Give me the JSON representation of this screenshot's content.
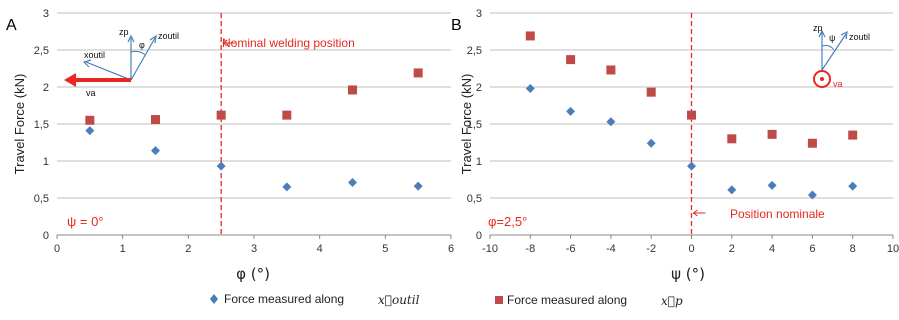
{
  "chart_data": [
    {
      "panel": "A",
      "type": "scatter",
      "xlabel": "φ (°)",
      "ylabel": "Travel Force (kN)",
      "xlim": [
        0,
        6
      ],
      "ylim": [
        0,
        3
      ],
      "x_ticks": [
        "0",
        "1",
        "2",
        "3",
        "4",
        "5",
        "6"
      ],
      "y_ticks": [
        "0",
        "0,5",
        "1",
        "1,5",
        "2",
        "2,5",
        "3"
      ],
      "grid": "horizontal",
      "annotations": {
        "condition": "ψ = 0°",
        "reference_line_label": "Nominal welding position",
        "reference_x": 2.5,
        "schematic": {
          "z_label": "zp",
          "z_outil_label": "zoutil",
          "x_label": "xoutil",
          "v_label": "va",
          "angle_label": "φ"
        }
      },
      "series": [
        {
          "name": "Force measured along x⃗outil",
          "color": "#4a7ebb",
          "marker": "diamond",
          "x": [
            0.5,
            1.5,
            2.5,
            3.5,
            4.5,
            5.5
          ],
          "y": [
            1.41,
            1.14,
            0.93,
            0.65,
            0.71,
            0.66
          ]
        },
        {
          "name": "Force measured along x⃗p",
          "color": "#be4b48",
          "marker": "square",
          "x": [
            0.5,
            1.5,
            2.5,
            3.5,
            4.5,
            5.5
          ],
          "y": [
            1.55,
            1.56,
            1.62,
            1.62,
            1.96,
            2.19
          ]
        }
      ]
    },
    {
      "panel": "B",
      "type": "scatter",
      "xlabel": "ψ (°)",
      "ylabel": "Travel Force (kN)",
      "xlim": [
        -10,
        10
      ],
      "ylim": [
        0,
        3
      ],
      "x_ticks": [
        "-10",
        "-8",
        "-6",
        "-4",
        "-2",
        "0",
        "2",
        "4",
        "6",
        "8",
        "10"
      ],
      "y_ticks": [
        "0",
        "0,5",
        "1",
        "1,5",
        "2",
        "2,5",
        "3"
      ],
      "grid": "horizontal",
      "annotations": {
        "condition": "φ=2,5°",
        "reference_line_label": "Position nominale",
        "reference_x": 0,
        "schematic": {
          "z_label": "zp",
          "z_outil_label": "zoutil",
          "v_label": "va",
          "angle_label": "ψ"
        }
      },
      "series": [
        {
          "name": "Force measured along x⃗outil",
          "color": "#4a7ebb",
          "marker": "diamond",
          "x": [
            -8,
            -6,
            -4,
            -2,
            0,
            2,
            4,
            6,
            8
          ],
          "y": [
            1.98,
            1.67,
            1.53,
            1.24,
            0.93,
            0.61,
            0.67,
            0.54,
            0.66
          ]
        },
        {
          "name": "Force measured along x⃗p",
          "color": "#be4b48",
          "marker": "square",
          "x": [
            -8,
            -6,
            -4,
            -2,
            0,
            2,
            4,
            6,
            8
          ],
          "y": [
            2.69,
            2.37,
            2.23,
            1.93,
            1.62,
            1.3,
            1.36,
            1.24,
            1.35
          ]
        }
      ]
    }
  ],
  "legend": {
    "placement": "bottom",
    "items": [
      {
        "label": "Force measured along",
        "symbol": "x⃗outil",
        "color": "#4a7ebb",
        "marker": "diamond"
      },
      {
        "label": "Force measured along",
        "symbol": "x⃗p",
        "color": "#be4b48",
        "marker": "square"
      }
    ]
  }
}
